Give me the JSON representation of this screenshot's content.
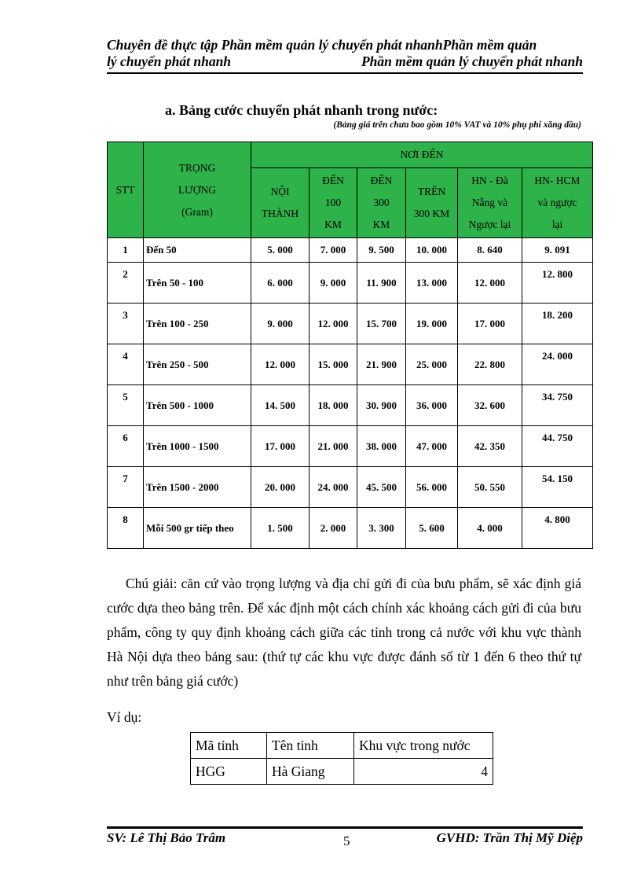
{
  "header": {
    "line1": "Chuyên đề thực tập Phần mềm quản lý chuyển phát nhanhPhần mềm quản",
    "line2_left": "lý chuyển phát nhanh",
    "line2_right": "Phần mềm quản lý chuyển phát nhanh"
  },
  "section_title": "a.  Bảng cước chuyển phát nhanh trong nước:",
  "section_note": "(Bảng giá trên chưa bao gồm 10% VAT và 10% phụ phí xăng dầu)",
  "rate_table": {
    "header_color": "#2db34a",
    "stt": "STT",
    "weight": [
      "TRỌNG",
      "LƯỢNG",
      "(Gram)"
    ],
    "destination": "NƠI ĐẾN",
    "columns": [
      [
        "NỘI",
        "THÀNH"
      ],
      [
        "ĐẾN",
        "100",
        "KM"
      ],
      [
        "ĐẾN",
        "300",
        "KM"
      ],
      [
        "TRÊN",
        "300 KM"
      ],
      [
        "HN - Đà",
        "Nẵng và",
        "Ngược lại"
      ],
      [
        "HN- HCM",
        "và ngược",
        "lại"
      ]
    ],
    "rows": [
      {
        "stt": "1",
        "weight": "Đến 50",
        "values": [
          "5. 000",
          "7. 000",
          "9. 500",
          "10. 000",
          "8. 640",
          "9. 091"
        ]
      },
      {
        "stt": "2",
        "weight": "Trên 50    - 100",
        "values": [
          "6. 000",
          "9. 000",
          "11. 900",
          "13. 000",
          "12. 000",
          "12. 800"
        ]
      },
      {
        "stt": "3",
        "weight": "Trên 100 - 250",
        "values": [
          "9. 000",
          "12. 000",
          "15. 700",
          "19. 000",
          "17. 000",
          "18. 200"
        ]
      },
      {
        "stt": "4",
        "weight": "Trên 250 - 500",
        "values": [
          "12. 000",
          "15. 000",
          "21. 900",
          "25. 000",
          "22. 800",
          "24. 000"
        ]
      },
      {
        "stt": "5",
        "weight": "Trên 500 - 1000",
        "values": [
          "14. 500",
          "18. 000",
          "30. 900",
          "36. 000",
          "32. 600",
          "34. 750"
        ]
      },
      {
        "stt": "6",
        "weight": "Trên 1000 - 1500",
        "values": [
          "17. 000",
          "21. 000",
          "38. 000",
          "47. 000",
          "42. 350",
          "44. 750"
        ]
      },
      {
        "stt": "7",
        "weight": "Trên 1500 - 2000",
        "values": [
          "20. 000",
          "24. 000",
          "45. 500",
          "56. 000",
          "50. 550",
          "54. 150"
        ]
      },
      {
        "stt": "8",
        "weight": "Mỗi 500 gr tiếp theo",
        "values": [
          "1. 500",
          "2. 000",
          "3. 300",
          "5. 600",
          "4. 000",
          "4. 800"
        ]
      }
    ]
  },
  "paragraph": "Chú giải:  căn cứ vào trọng lượng và địa chỉ gửi đi của bưu phẩm, sẽ xác định giá  cước dựa theo bảng trên. Để xác định một cách chính xác khoảng cách gửi đi của bưu phẩm, công ty quy định khoảng cách giữa  các tỉnh trong cả nước với khu vực thành Hà Nội dựa theo bảng sau: (thứ tự các khu vực được đánh số từ 1 đến 6 theo thứ tự như trên bảng giá cước)",
  "example_label": "Ví dụ:",
  "example_table": {
    "headers": [
      "Mã tỉnh",
      "Tên tỉnh",
      "Khu vực trong nước"
    ],
    "row": [
      "HGG",
      "Hà Giang",
      "4"
    ]
  },
  "footer": {
    "left": "SV: Lê Thị Bảo Trâm",
    "page": "5",
    "right": "GVHD: Trần Thị Mỹ Diệp"
  }
}
